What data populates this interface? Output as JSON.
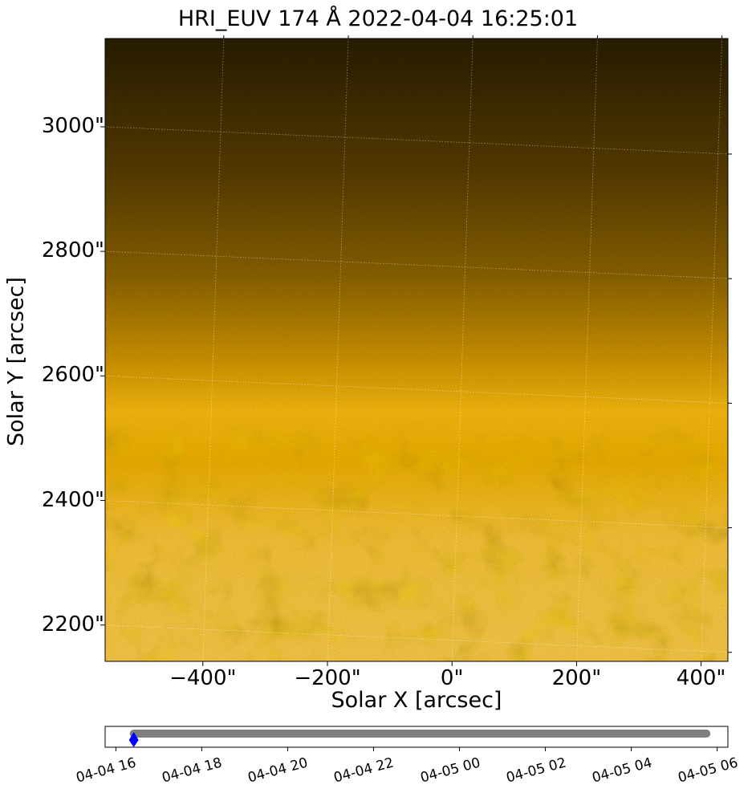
{
  "chart_data": [
    {
      "type": "heatmap",
      "title": "HRI_EUV 174 Å 2022-04-04 16:25:01",
      "xlabel": "Solar X [arcsec]",
      "ylabel": "Solar Y [arcsec]",
      "xlim": [
        -575,
        425
      ],
      "ylim": [
        2152,
        3152
      ],
      "xticks": [
        -400,
        -200,
        0,
        200,
        400
      ],
      "xtick_labels": [
        "−400\"",
        "−200\"",
        "0\"",
        "200\"",
        "400\""
      ],
      "yticks": [
        2200,
        2400,
        2600,
        2800,
        3000
      ],
      "ytick_labels": [
        "2200\"",
        "2400\"",
        "2600\"",
        "2800\"",
        "3000\""
      ],
      "colormap": "solar-orbiterhri_euv174",
      "limb_y": 2497,
      "grid": true
    },
    {
      "type": "scatter",
      "tick_labels": [
        "04-04 16",
        "04-04 18",
        "04-04 20",
        "04-04 22",
        "04-05 00",
        "04-05 02",
        "04-05 04",
        "04-05 06"
      ],
      "x_range": [
        "04-04 15:45",
        "04-05 06:15"
      ],
      "series": [
        {
          "color": "#808080",
          "start": "04-04 16:25",
          "end": "04-05 05:45"
        }
      ],
      "current": {
        "label": "04-04 16:25",
        "color": "#0000ff",
        "marker": "diamond"
      }
    }
  ]
}
